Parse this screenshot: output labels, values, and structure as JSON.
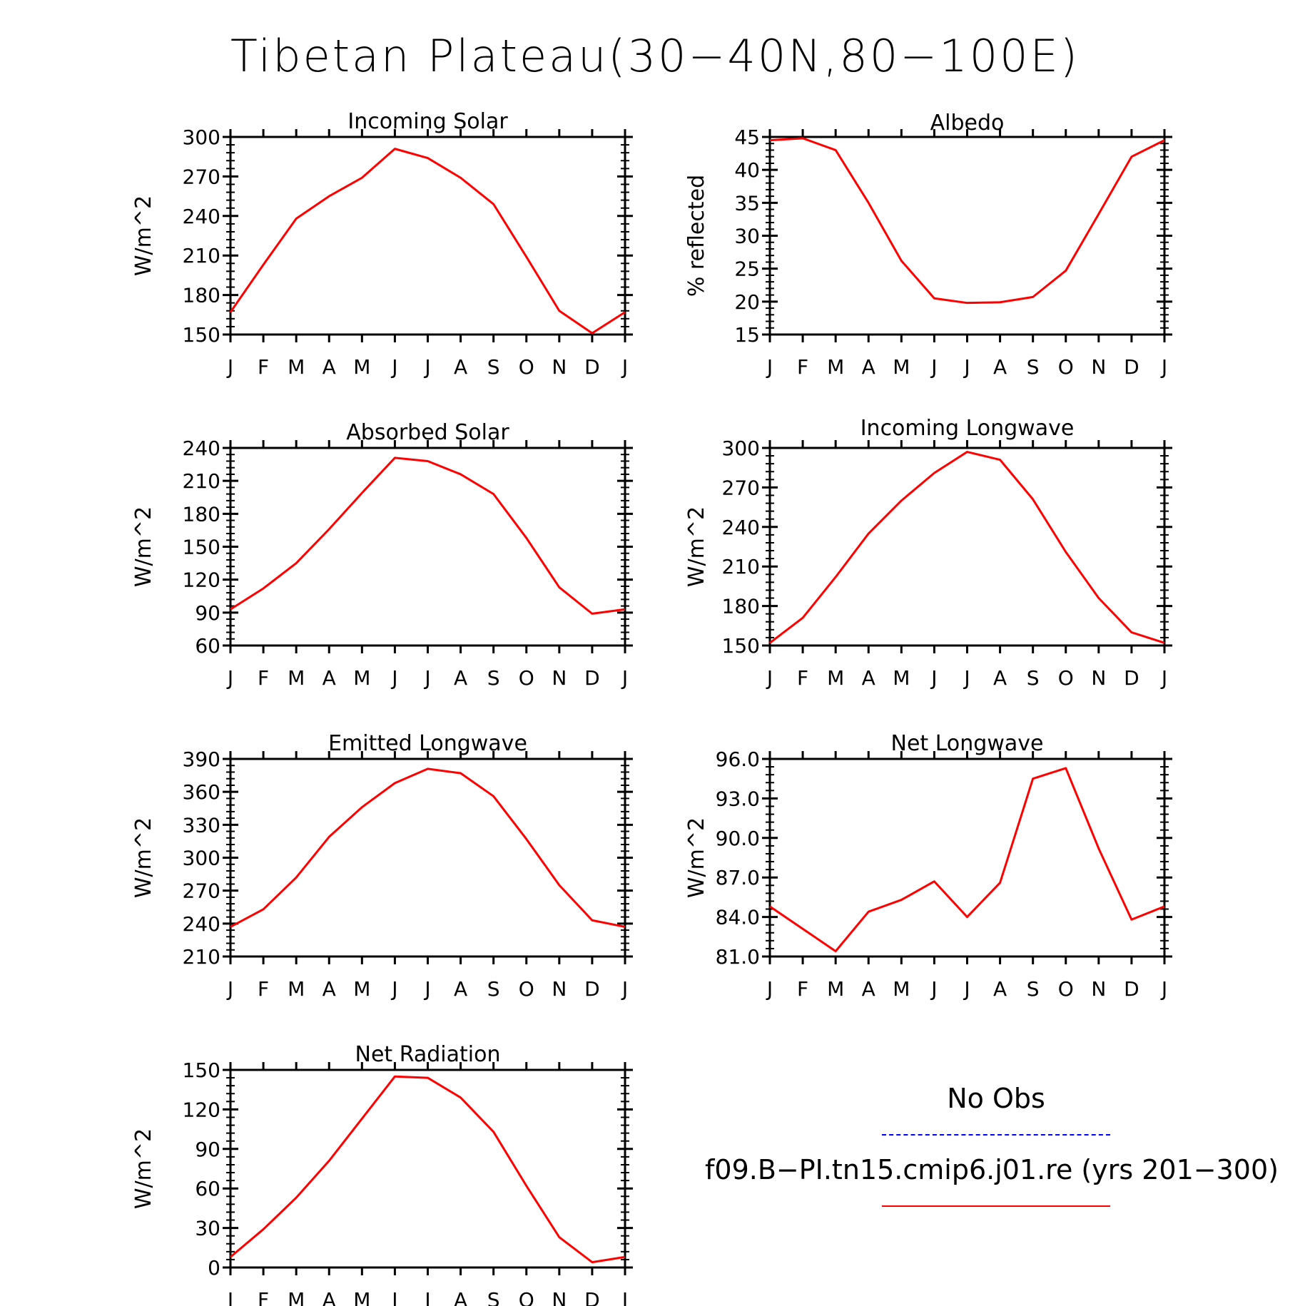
{
  "title": "Tibetan Plateau(30−40N,80−100E)",
  "colors": {
    "model": "#ff0000",
    "obs": "#0000ff",
    "axis": "#000000"
  },
  "legend": {
    "obs_label": "No Obs",
    "model_label": "f09.B−PI.tn15.cmip6.j01.re (yrs 201−300)"
  },
  "chart_data": [
    {
      "type": "line",
      "title": "Incoming Solar",
      "ylabel": "W/m^2",
      "categories": [
        "J",
        "F",
        "M",
        "A",
        "M",
        "J",
        "J",
        "A",
        "S",
        "O",
        "N",
        "D",
        "J"
      ],
      "ylim": [
        150,
        300
      ],
      "yticks": [
        "150",
        "180",
        "210",
        "240",
        "270",
        "300"
      ],
      "series": [
        {
          "values": [
            167,
            203,
            238,
            255,
            269,
            291,
            284,
            269,
            249,
            209,
            168,
            151,
            167
          ]
        }
      ]
    },
    {
      "type": "line",
      "title": "Albedo",
      "ylabel": "% reflected",
      "categories": [
        "J",
        "F",
        "M",
        "A",
        "M",
        "J",
        "J",
        "A",
        "S",
        "O",
        "N",
        "D",
        "J"
      ],
      "ylim": [
        15,
        45
      ],
      "yticks": [
        "15",
        "20",
        "25",
        "30",
        "35",
        "40",
        "45"
      ],
      "series": [
        {
          "values": [
            44.5,
            44.8,
            43.0,
            35.0,
            26.2,
            20.5,
            19.8,
            19.9,
            20.7,
            24.7,
            33.3,
            42.0,
            44.5
          ]
        }
      ]
    },
    {
      "type": "line",
      "title": "Absorbed Solar",
      "ylabel": "W/m^2",
      "categories": [
        "J",
        "F",
        "M",
        "A",
        "M",
        "J",
        "J",
        "A",
        "S",
        "O",
        "N",
        "D",
        "J"
      ],
      "ylim": [
        60,
        240
      ],
      "yticks": [
        "60",
        "90",
        "120",
        "150",
        "180",
        "210",
        "240"
      ],
      "series": [
        {
          "values": [
            93,
            112,
            135,
            166,
            199,
            231,
            228,
            216,
            198,
            158,
            113,
            89,
            93
          ]
        }
      ]
    },
    {
      "type": "line",
      "title": "Incoming Longwave",
      "ylabel": "W/m^2",
      "categories": [
        "J",
        "F",
        "M",
        "A",
        "M",
        "J",
        "J",
        "A",
        "S",
        "O",
        "N",
        "D",
        "J"
      ],
      "ylim": [
        150,
        300
      ],
      "yticks": [
        "150",
        "180",
        "210",
        "240",
        "270",
        "300"
      ],
      "series": [
        {
          "values": [
            152,
            171,
            202,
            235,
            260,
            281,
            297,
            291,
            261,
            221,
            186,
            160,
            152
          ]
        }
      ]
    },
    {
      "type": "line",
      "title": "Emitted Longwave",
      "ylabel": "W/m^2",
      "categories": [
        "J",
        "F",
        "M",
        "A",
        "M",
        "J",
        "J",
        "A",
        "S",
        "O",
        "N",
        "D",
        "J"
      ],
      "ylim": [
        210,
        390
      ],
      "yticks": [
        "210",
        "240",
        "270",
        "300",
        "330",
        "360",
        "390"
      ],
      "series": [
        {
          "values": [
            237,
            253,
            282,
            319,
            346,
            368,
            381,
            377,
            356,
            317,
            275,
            243,
            237
          ]
        }
      ]
    },
    {
      "type": "line",
      "title": "Net Longwave",
      "ylabel": "W/m^2",
      "categories": [
        "J",
        "F",
        "M",
        "A",
        "M",
        "J",
        "J",
        "A",
        "S",
        "O",
        "N",
        "D",
        "J"
      ],
      "ylim": [
        81,
        96
      ],
      "yticks": [
        "81.0",
        "84.0",
        "87.0",
        "90.0",
        "93.0",
        "96.0"
      ],
      "series": [
        {
          "values": [
            84.8,
            83.1,
            81.4,
            84.4,
            85.3,
            86.7,
            84.0,
            86.6,
            94.5,
            95.3,
            89.2,
            83.8,
            84.8
          ]
        }
      ]
    },
    {
      "type": "line",
      "title": "Net Radiation",
      "ylabel": "W/m^2",
      "categories": [
        "J",
        "F",
        "M",
        "A",
        "M",
        "J",
        "J",
        "A",
        "S",
        "O",
        "N",
        "D",
        "J"
      ],
      "ylim": [
        0,
        150
      ],
      "yticks": [
        "0",
        "30",
        "60",
        "90",
        "120",
        "150"
      ],
      "series": [
        {
          "values": [
            8,
            29,
            53,
            81,
            113,
            145,
            144,
            129,
            103,
            62,
            23,
            4,
            8
          ]
        }
      ]
    }
  ]
}
